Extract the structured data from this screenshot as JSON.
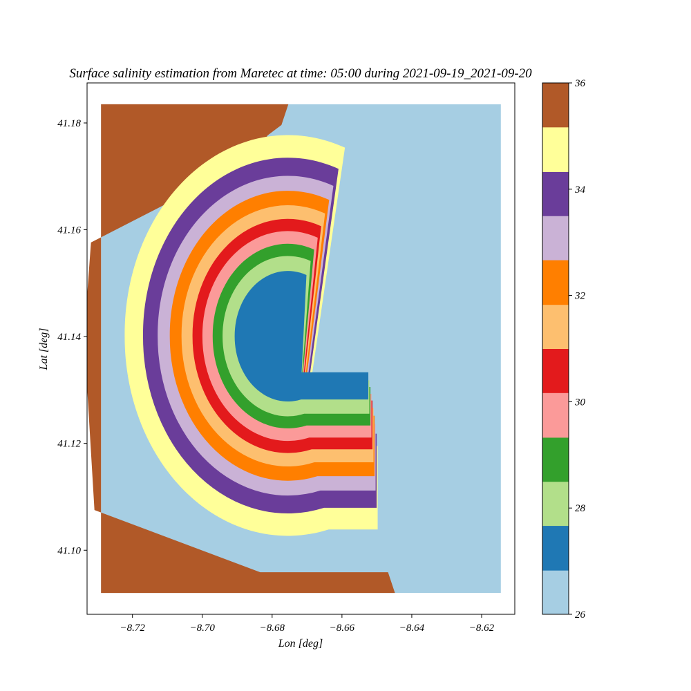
{
  "chart_data": {
    "type": "heatmap",
    "title": "Surface salinity estimation from Maretec at time: 05:00 during 2021-09-19_2021-09-20",
    "xlabel": "Lon [deg]",
    "ylabel": "Lat [deg]",
    "xlim": [
      -8.733,
      -8.6105
    ],
    "ylim": [
      41.088,
      41.1875
    ],
    "x_ticks": [
      -8.72,
      -8.7,
      -8.68,
      -8.66,
      -8.64,
      -8.62
    ],
    "x_tick_labels": [
      "−8.72",
      "−8.70",
      "−8.68",
      "−8.66",
      "−8.64",
      "−8.62"
    ],
    "y_ticks": [
      41.1,
      41.12,
      41.14,
      41.16,
      41.18
    ],
    "y_tick_labels": [
      "41.10",
      "41.12",
      "41.14",
      "41.16",
      "41.18"
    ],
    "grid": false,
    "colormap": "Paired",
    "colorbar": {
      "range": [
        26,
        36
      ],
      "ticks": [
        26,
        28,
        30,
        32,
        34,
        36
      ],
      "tick_labels": [
        "26",
        "28",
        "30",
        "32",
        "34",
        "36"
      ],
      "levels": [
        {
          "from": 26.0,
          "to": 26.83,
          "color": "#a6cee3"
        },
        {
          "from": 26.83,
          "to": 27.67,
          "color": "#1f78b4"
        },
        {
          "from": 27.67,
          "to": 28.5,
          "color": "#b2df8a"
        },
        {
          "from": 28.5,
          "to": 29.33,
          "color": "#33a02c"
        },
        {
          "from": 29.33,
          "to": 30.17,
          "color": "#fb9a99"
        },
        {
          "from": 30.17,
          "to": 31.0,
          "color": "#e31a1c"
        },
        {
          "from": 31.0,
          "to": 31.83,
          "color": "#fdbf6f"
        },
        {
          "from": 31.83,
          "to": 32.67,
          "color": "#ff7f00"
        },
        {
          "from": 32.67,
          "to": 33.5,
          "color": "#cab2d6"
        },
        {
          "from": 33.5,
          "to": 34.33,
          "color": "#6a3d9a"
        },
        {
          "from": 34.33,
          "to": 35.17,
          "color": "#ffff99"
        },
        {
          "from": 35.17,
          "to": 36.0,
          "color": "#b15928"
        }
      ]
    },
    "field": {
      "domain_lon": [
        -8.729,
        -8.6145
      ],
      "domain_lat": [
        41.092,
        41.1835
      ],
      "background_salinity": 26.4,
      "plume_center": {
        "lon": -8.6755,
        "lat": 41.14
      },
      "bands": [
        {
          "salinity": 27.2,
          "outer_radius_lon": 0.0145
        },
        {
          "salinity": 28.1,
          "outer_radius_lon": 0.0178
        },
        {
          "salinity": 28.9,
          "outer_radius_lon": 0.0205
        },
        {
          "salinity": 29.7,
          "outer_radius_lon": 0.0233
        },
        {
          "salinity": 30.6,
          "outer_radius_lon": 0.026
        },
        {
          "salinity": 31.4,
          "outer_radius_lon": 0.029
        },
        {
          "salinity": 32.2,
          "outer_radius_lon": 0.0322
        },
        {
          "salinity": 33.1,
          "outer_radius_lon": 0.0355
        },
        {
          "salinity": 33.9,
          "outer_radius_lon": 0.0395
        },
        {
          "salinity": 34.7,
          "outer_radius_lon": 0.0445
        }
      ],
      "offshore_salinity": 35.6
    }
  }
}
